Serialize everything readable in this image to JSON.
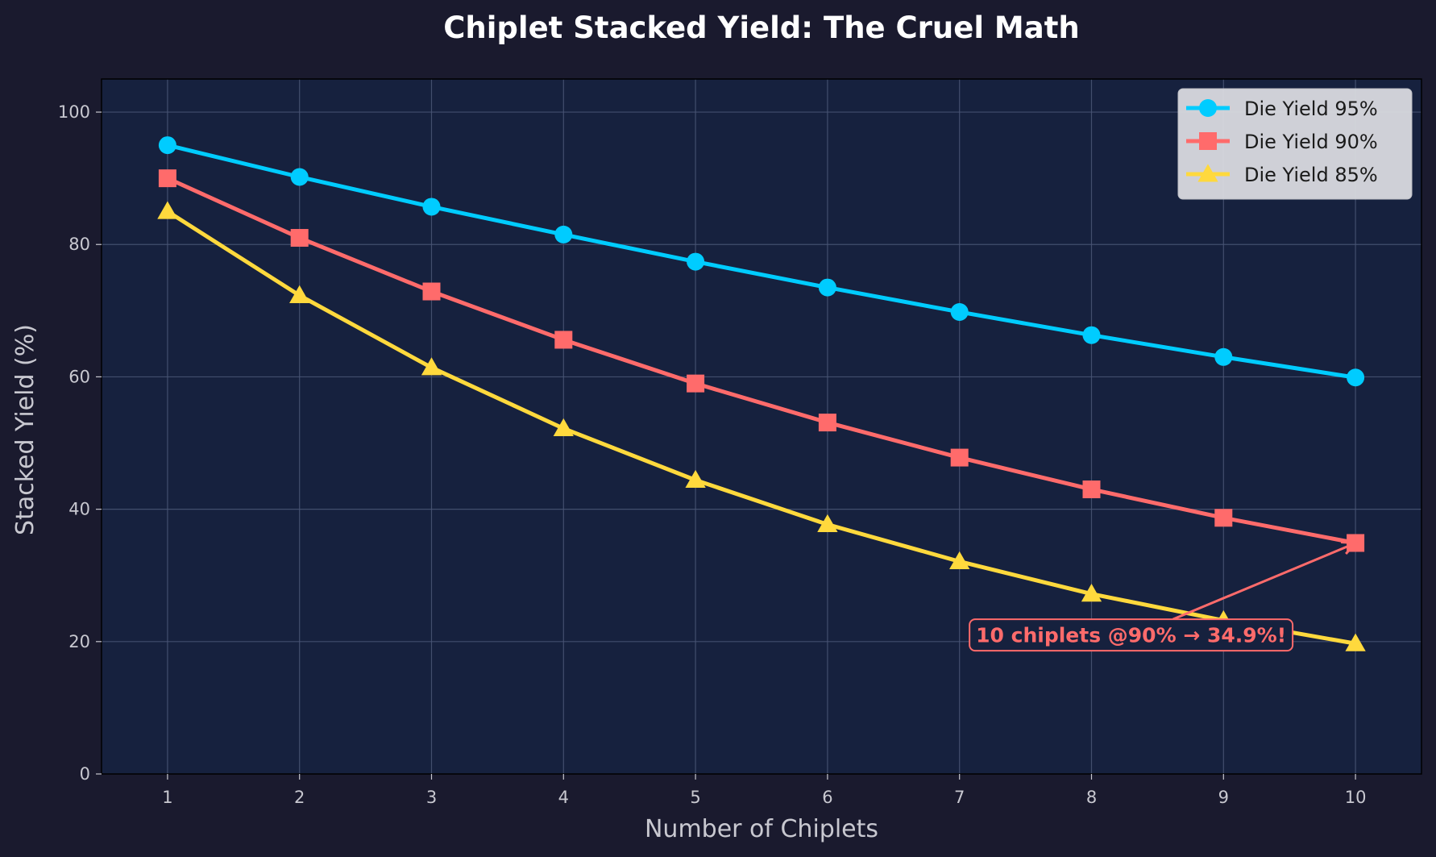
{
  "chart_data": {
    "type": "line",
    "title": "Chiplet Stacked Yield: The Cruel Math",
    "xlabel": "Number of Chiplets",
    "ylabel": "Stacked Yield (%)",
    "x": [
      1,
      2,
      3,
      4,
      5,
      6,
      7,
      8,
      9,
      10
    ],
    "xlim": [
      0.5,
      10.5
    ],
    "ylim": [
      0,
      105
    ],
    "xticks": [
      1,
      2,
      3,
      4,
      5,
      6,
      7,
      8,
      9,
      10
    ],
    "yticks": [
      0,
      20,
      40,
      60,
      80,
      100
    ],
    "grid": true,
    "legend_position": "top-right",
    "series": [
      {
        "name": "Die Yield 95%",
        "color": "#00ccff",
        "marker": "circle",
        "values": [
          95.0,
          90.2,
          85.7,
          81.5,
          77.4,
          73.5,
          69.8,
          66.3,
          63.0,
          59.9
        ]
      },
      {
        "name": "Die Yield 90%",
        "color": "#ff6b6b",
        "marker": "square",
        "values": [
          90.0,
          81.0,
          72.9,
          65.6,
          59.0,
          53.1,
          47.8,
          43.0,
          38.7,
          34.9
        ]
      },
      {
        "name": "Die Yield 85%",
        "color": "#ffd93d",
        "marker": "triangle",
        "values": [
          85.0,
          72.3,
          61.4,
          52.2,
          44.4,
          37.7,
          32.1,
          27.2,
          23.2,
          19.7
        ]
      }
    ],
    "annotations": [
      {
        "text": "10 chiplets @90% → 34.9%!",
        "text_x": 8.3,
        "text_y": 21,
        "arrow_to_x": 10,
        "arrow_to_y": 34.9,
        "color": "#ff6b6b"
      }
    ]
  },
  "colors": {
    "figure_background": "#1a1a2e",
    "plot_background": "#16213e",
    "grid": "#4a5675",
    "text": "#c8c8d0"
  }
}
